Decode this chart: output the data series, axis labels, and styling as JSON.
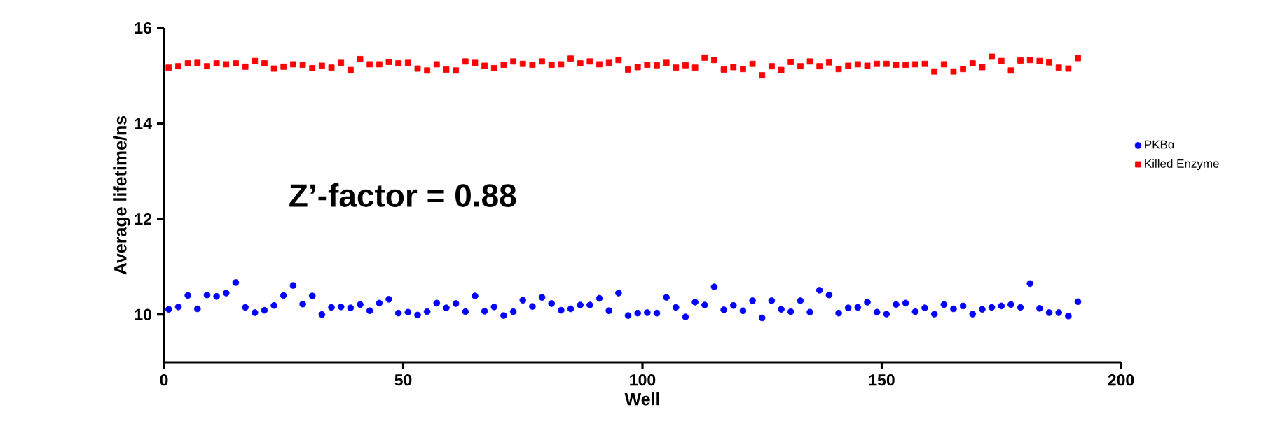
{
  "chart_data": {
    "type": "scatter",
    "xlabel": "Well",
    "ylabel": "Average lifetime/ns",
    "annotations": [
      "Z’-factor = 0.88"
    ],
    "x": [
      1,
      3,
      5,
      7,
      9,
      11,
      13,
      15,
      17,
      19,
      21,
      23,
      25,
      27,
      29,
      31,
      33,
      35,
      37,
      39,
      41,
      43,
      45,
      47,
      49,
      51,
      53,
      55,
      57,
      59,
      61,
      63,
      65,
      67,
      69,
      71,
      73,
      75,
      77,
      79,
      81,
      83,
      85,
      87,
      89,
      91,
      93,
      95,
      97,
      99,
      101,
      103,
      105,
      107,
      109,
      111,
      113,
      115,
      117,
      119,
      121,
      123,
      125,
      127,
      129,
      131,
      133,
      135,
      137,
      139,
      141,
      143,
      145,
      147,
      149,
      151,
      153,
      155,
      157,
      159,
      161,
      163,
      165,
      167,
      169,
      171,
      173,
      175,
      177,
      179,
      181,
      183,
      185,
      187,
      189,
      191
    ],
    "xlim": [
      0,
      200
    ],
    "xticks": [
      0,
      50,
      100,
      150,
      200
    ],
    "ylim": [
      9,
      16
    ],
    "yticks": [
      10,
      12,
      14,
      16
    ],
    "legend": "right",
    "grid": false,
    "series": [
      {
        "name": "PKBα",
        "color": "#0000ff",
        "marker": "circle",
        "values": [
          10.11,
          10.16,
          10.4,
          10.12,
          10.41,
          10.38,
          10.45,
          10.67,
          10.15,
          10.04,
          10.09,
          10.19,
          10.4,
          10.61,
          10.22,
          10.39,
          10.0,
          10.15,
          10.16,
          10.14,
          10.21,
          10.08,
          10.24,
          10.32,
          10.03,
          10.05,
          9.99,
          10.06,
          10.24,
          10.14,
          10.23,
          10.06,
          10.39,
          10.07,
          10.16,
          9.98,
          10.06,
          10.3,
          10.17,
          10.36,
          10.23,
          10.09,
          10.12,
          10.2,
          10.2,
          10.34,
          10.08,
          10.45,
          9.98,
          10.03,
          10.04,
          10.03,
          10.36,
          10.15,
          9.95,
          10.26,
          10.2,
          10.58,
          10.1,
          10.19,
          10.08,
          10.29,
          9.93,
          10.29,
          10.11,
          10.06,
          10.29,
          10.05,
          10.51,
          10.41,
          10.03,
          10.14,
          10.15,
          10.26,
          10.05,
          10.01,
          10.21,
          10.24,
          10.06,
          10.14,
          10.01,
          10.21,
          10.12,
          10.18,
          10.01,
          10.11,
          10.15,
          10.18,
          10.21,
          10.15,
          10.65,
          10.13,
          10.04,
          10.04,
          9.97,
          10.27
        ]
      },
      {
        "name": "Killed Enzyme",
        "color": "#ff0000",
        "marker": "square",
        "values": [
          15.17,
          15.2,
          15.26,
          15.27,
          15.2,
          15.26,
          15.24,
          15.26,
          15.19,
          15.31,
          15.26,
          15.15,
          15.19,
          15.24,
          15.23,
          15.16,
          15.21,
          15.17,
          15.27,
          15.12,
          15.35,
          15.24,
          15.24,
          15.29,
          15.26,
          15.27,
          15.15,
          15.11,
          15.24,
          15.13,
          15.11,
          15.3,
          15.27,
          15.21,
          15.16,
          15.23,
          15.3,
          15.25,
          15.23,
          15.3,
          15.23,
          15.24,
          15.36,
          15.26,
          15.3,
          15.24,
          15.27,
          15.33,
          15.13,
          15.18,
          15.23,
          15.22,
          15.27,
          15.17,
          15.22,
          15.17,
          15.38,
          15.33,
          15.13,
          15.18,
          15.14,
          15.25,
          15.01,
          15.2,
          15.12,
          15.29,
          15.2,
          15.3,
          15.2,
          15.28,
          15.14,
          15.21,
          15.24,
          15.21,
          15.25,
          15.25,
          15.23,
          15.23,
          15.24,
          15.25,
          15.09,
          15.24,
          15.09,
          15.14,
          15.26,
          15.18,
          15.4,
          15.31,
          15.11,
          15.32,
          15.33,
          15.31,
          15.28,
          15.17,
          15.15,
          15.37
        ]
      }
    ]
  }
}
